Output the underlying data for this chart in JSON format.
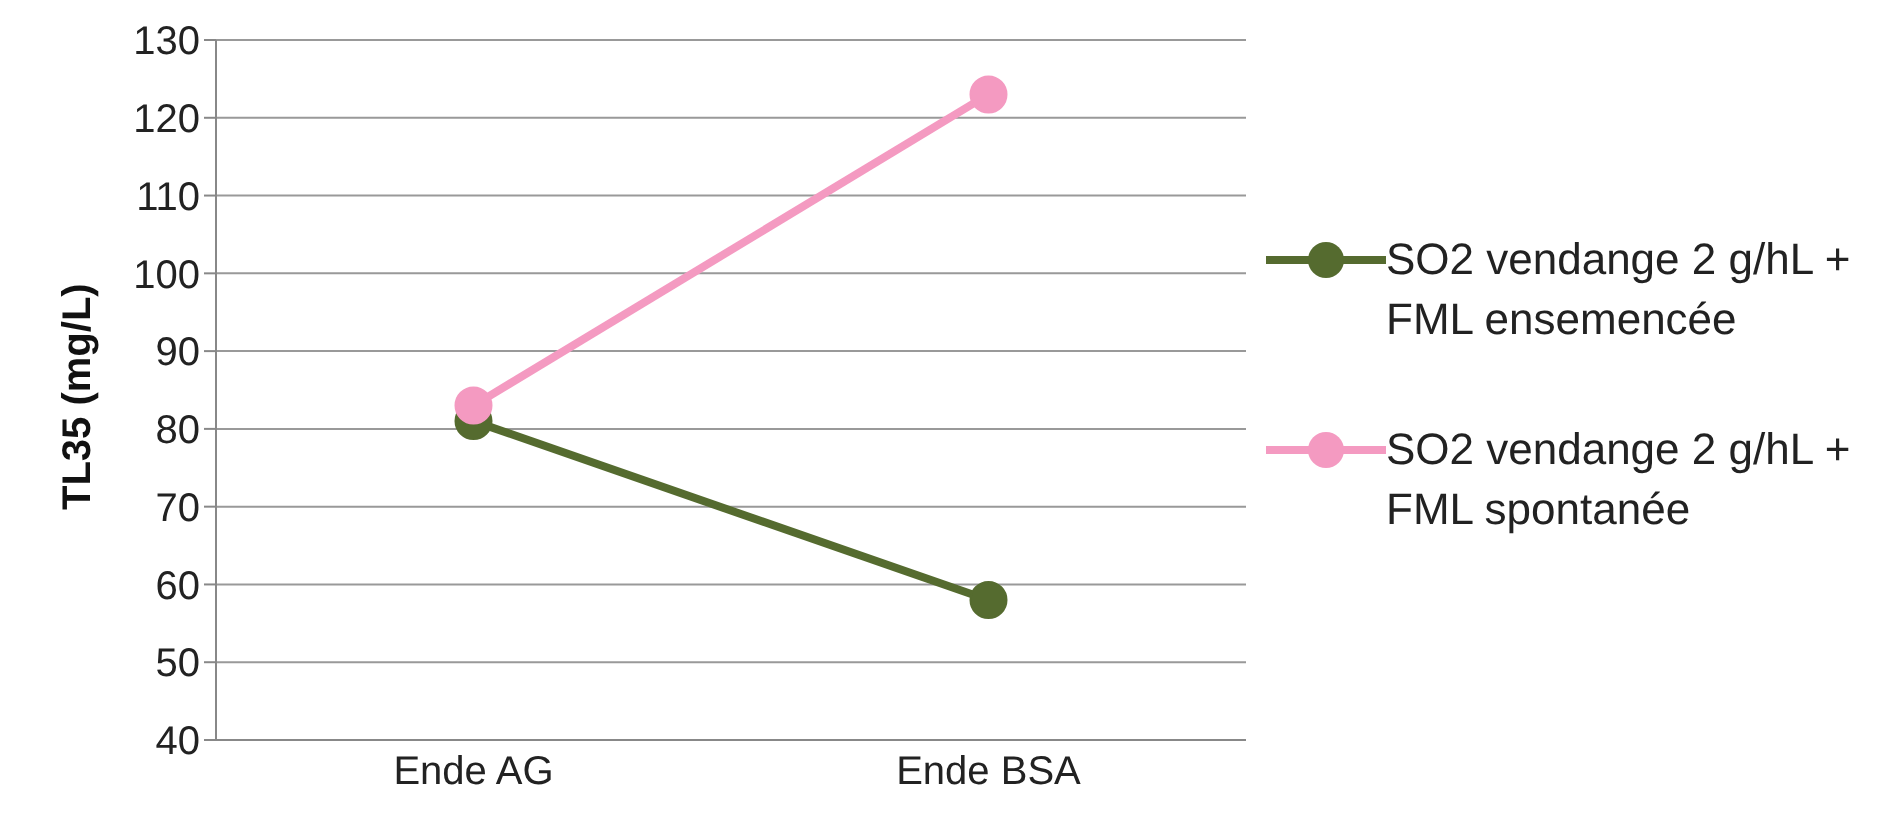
{
  "chart_data": {
    "type": "line",
    "ylabel": "TL35 (mg/L)",
    "categories": [
      "Ende AG",
      "Ende BSA"
    ],
    "series": [
      {
        "name": "SO2 vendange 2 g/hL + FML ensemencée",
        "color": "#556b2f",
        "values": [
          81,
          58
        ]
      },
      {
        "name": "SO2 vendange 2 g/hL + FML spontanée",
        "color": "#f49ac1",
        "values": [
          83,
          123
        ]
      }
    ],
    "ylim": [
      40,
      130
    ],
    "yticks": [
      40,
      50,
      60,
      70,
      80,
      90,
      100,
      110,
      120,
      130
    ],
    "grid": "y",
    "legend": "right",
    "marker": "circle",
    "line_style": "solid"
  }
}
